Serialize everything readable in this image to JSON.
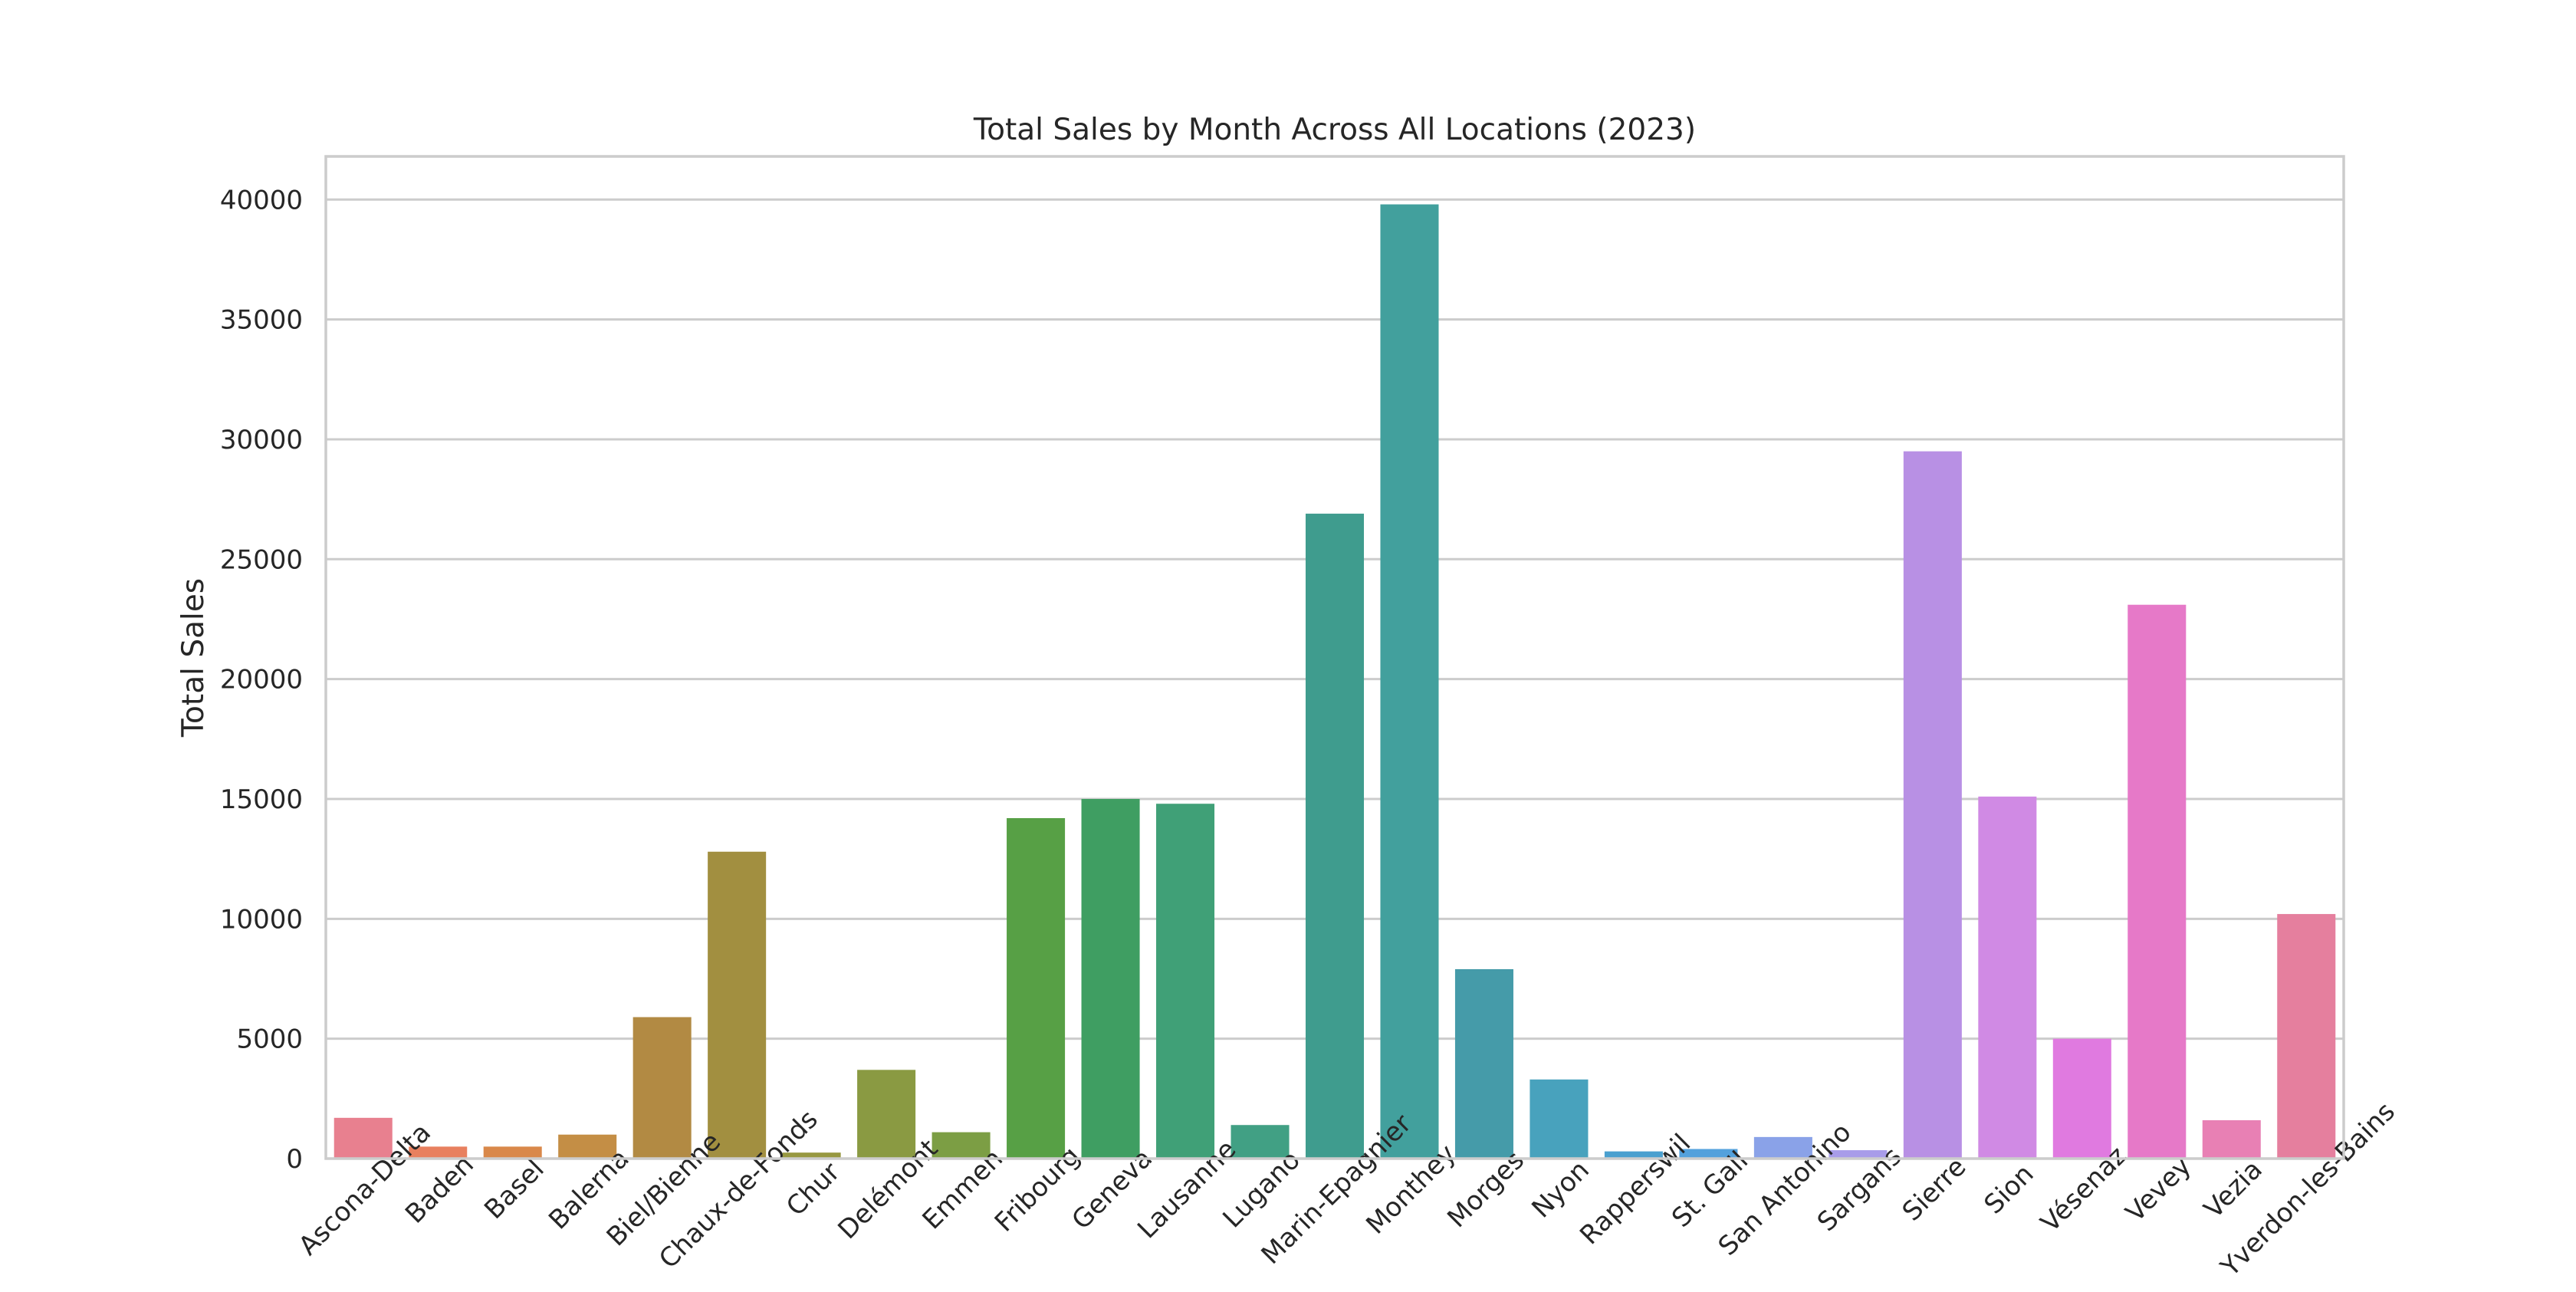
{
  "chart_data": {
    "type": "bar",
    "title": "Total Sales by Month Across All Locations (2023)",
    "xlabel": "",
    "ylabel": "Total Sales",
    "ylim": [
      0,
      41800
    ],
    "yticks": [
      0,
      5000,
      10000,
      15000,
      20000,
      25000,
      30000,
      35000,
      40000
    ],
    "grid": true,
    "categories": [
      "Ascona-Delta",
      "Baden",
      "Basel",
      "Balerna",
      "Biel/Bienne",
      "Chaux-de-Fonds",
      "Chur",
      "Delémont",
      "Emmen",
      "Fribourg",
      "Geneva",
      "Lausanne",
      "Lugano",
      "Marin-Epagnier",
      "Monthey",
      "Morges",
      "Nyon",
      "Rapperswil",
      "St. Gall",
      "San Antonino",
      "Sargans",
      "Sierre",
      "Sion",
      "Vésenaz",
      "Vevey",
      "Vezia",
      "Yverdon-les-Bains"
    ],
    "values": [
      1700,
      500,
      500,
      1000,
      5900,
      12800,
      250,
      3700,
      1100,
      14200,
      15000,
      14800,
      1400,
      26900,
      39800,
      7900,
      3300,
      300,
      400,
      900,
      350,
      29500,
      15100,
      5000,
      23100,
      1600,
      10200
    ],
    "colors": [
      "#e8808f",
      "#e8805f",
      "#d9884a",
      "#c48e45",
      "#b28a43",
      "#a28f40",
      "#979840",
      "#8a9a42",
      "#7c9e44",
      "#57a045",
      "#3f9e62",
      "#40a077",
      "#41a084",
      "#3f9c8e",
      "#42a09d",
      "#459ba9",
      "#48a2bd",
      "#4aa0cf",
      "#53a1dc",
      "#8aa2e8",
      "#a89ce9",
      "#b890e4",
      "#d08ae4",
      "#e07ae0",
      "#e679c8",
      "#e880b4",
      "#e57f9e"
    ]
  }
}
